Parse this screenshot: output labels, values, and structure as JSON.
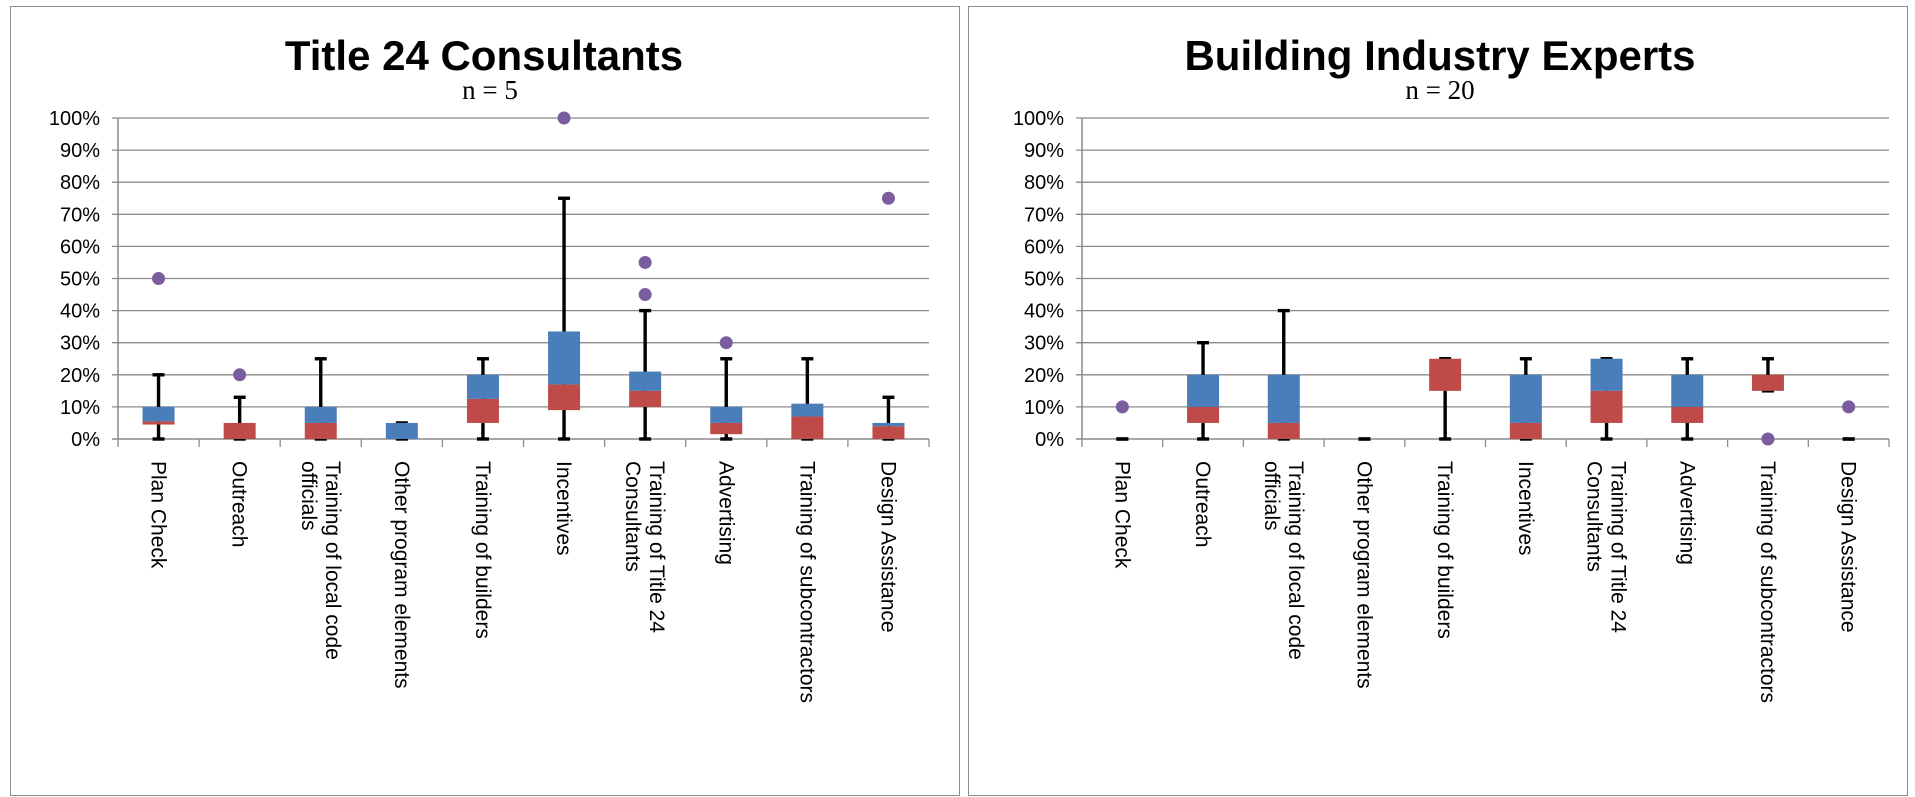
{
  "colors": {
    "upper_box": "#4a7ebb",
    "lower_box": "#be4b48",
    "outlier": "#7b5c9e",
    "whisker": "#000000",
    "gridline": "#8a8a8a"
  },
  "chart_data": [
    {
      "type": "box",
      "title": "Title 24 Consultants",
      "subtitle": "n = 5",
      "ylim": [
        0,
        100
      ],
      "y_ticks": [
        "0%",
        "10%",
        "20%",
        "30%",
        "40%",
        "50%",
        "60%",
        "70%",
        "80%",
        "90%",
        "100%"
      ],
      "grid": true,
      "categories": [
        {
          "label": [
            "Plan Check"
          ],
          "min": 0,
          "q1": 4.5,
          "median": 5.5,
          "q3": 10,
          "max": 20,
          "outliers": [
            50
          ]
        },
        {
          "label": [
            "Outreach"
          ],
          "min": 0,
          "q1": 0,
          "median": 5,
          "q3": 5,
          "max": 13,
          "outliers": [
            20
          ]
        },
        {
          "label": [
            "Training of local code",
            "officials"
          ],
          "min": 0,
          "q1": 0,
          "median": 5,
          "q3": 10,
          "max": 25,
          "outliers": []
        },
        {
          "label": [
            "Other program elements"
          ],
          "min": 0,
          "q1": 0,
          "median": 0,
          "q3": 5,
          "max": 5,
          "outliers": []
        },
        {
          "label": [
            "Training of builders"
          ],
          "min": 0,
          "q1": 5,
          "median": 12.5,
          "q3": 20,
          "max": 25,
          "outliers": []
        },
        {
          "label": [
            "Incentives"
          ],
          "min": 0,
          "q1": 9,
          "median": 17,
          "q3": 33.5,
          "max": 75,
          "outliers": [
            100
          ]
        },
        {
          "label": [
            "Training of Title 24",
            "Consultants"
          ],
          "min": 0,
          "q1": 10,
          "median": 15,
          "q3": 21,
          "max": 40,
          "outliers": [
            45,
            55
          ]
        },
        {
          "label": [
            "Advertising"
          ],
          "min": 0,
          "q1": 1.5,
          "median": 5,
          "q3": 10,
          "max": 25,
          "outliers": [
            30
          ]
        },
        {
          "label": [
            "Training of subcontractors"
          ],
          "min": 0,
          "q1": 0,
          "median": 7,
          "q3": 11,
          "max": 25,
          "outliers": []
        },
        {
          "label": [
            "Design Assistance"
          ],
          "min": 0,
          "q1": 0,
          "median": 4,
          "q3": 5,
          "max": 13,
          "outliers": [
            75
          ]
        }
      ]
    },
    {
      "type": "box",
      "title": "Building Industry Experts",
      "subtitle": "n = 20",
      "ylim": [
        0,
        100
      ],
      "y_ticks": [
        "0%",
        "10%",
        "20%",
        "30%",
        "40%",
        "50%",
        "60%",
        "70%",
        "80%",
        "90%",
        "100%"
      ],
      "grid": true,
      "categories": [
        {
          "label": [
            "Plan Check"
          ],
          "min": 0,
          "q1": 0,
          "median": 0,
          "q3": 0,
          "max": 0,
          "outliers": [
            10
          ]
        },
        {
          "label": [
            "Outreach"
          ],
          "min": 0,
          "q1": 5,
          "median": 10,
          "q3": 20,
          "max": 30,
          "outliers": []
        },
        {
          "label": [
            "Training of local code",
            "officials"
          ],
          "min": 0,
          "q1": 0,
          "median": 5,
          "q3": 20,
          "max": 40,
          "outliers": []
        },
        {
          "label": [
            "Other program elements"
          ],
          "min": 0,
          "q1": 0,
          "median": 0,
          "q3": 0,
          "max": 0,
          "outliers": []
        },
        {
          "label": [
            "Training of builders"
          ],
          "min": 0,
          "q1": 15,
          "median": 25,
          "q3": 25,
          "max": 25,
          "outliers": []
        },
        {
          "label": [
            "Incentives"
          ],
          "min": 0,
          "q1": 0,
          "median": 5,
          "q3": 20,
          "max": 25,
          "outliers": []
        },
        {
          "label": [
            "Training of Title 24",
            "Consultants"
          ],
          "min": 0,
          "q1": 5,
          "median": 15,
          "q3": 25,
          "max": 25,
          "outliers": []
        },
        {
          "label": [
            "Advertising"
          ],
          "min": 0,
          "q1": 5,
          "median": 10,
          "q3": 20,
          "max": 25,
          "outliers": []
        },
        {
          "label": [
            "Training of subcontractors"
          ],
          "min": 15,
          "q1": 15,
          "median": 20,
          "q3": 20,
          "max": 25,
          "outliers": [
            0
          ]
        },
        {
          "label": [
            "Design Assistance"
          ],
          "min": 0,
          "q1": 0,
          "median": 0,
          "q3": 0,
          "max": 0,
          "outliers": [
            10
          ]
        }
      ]
    }
  ]
}
